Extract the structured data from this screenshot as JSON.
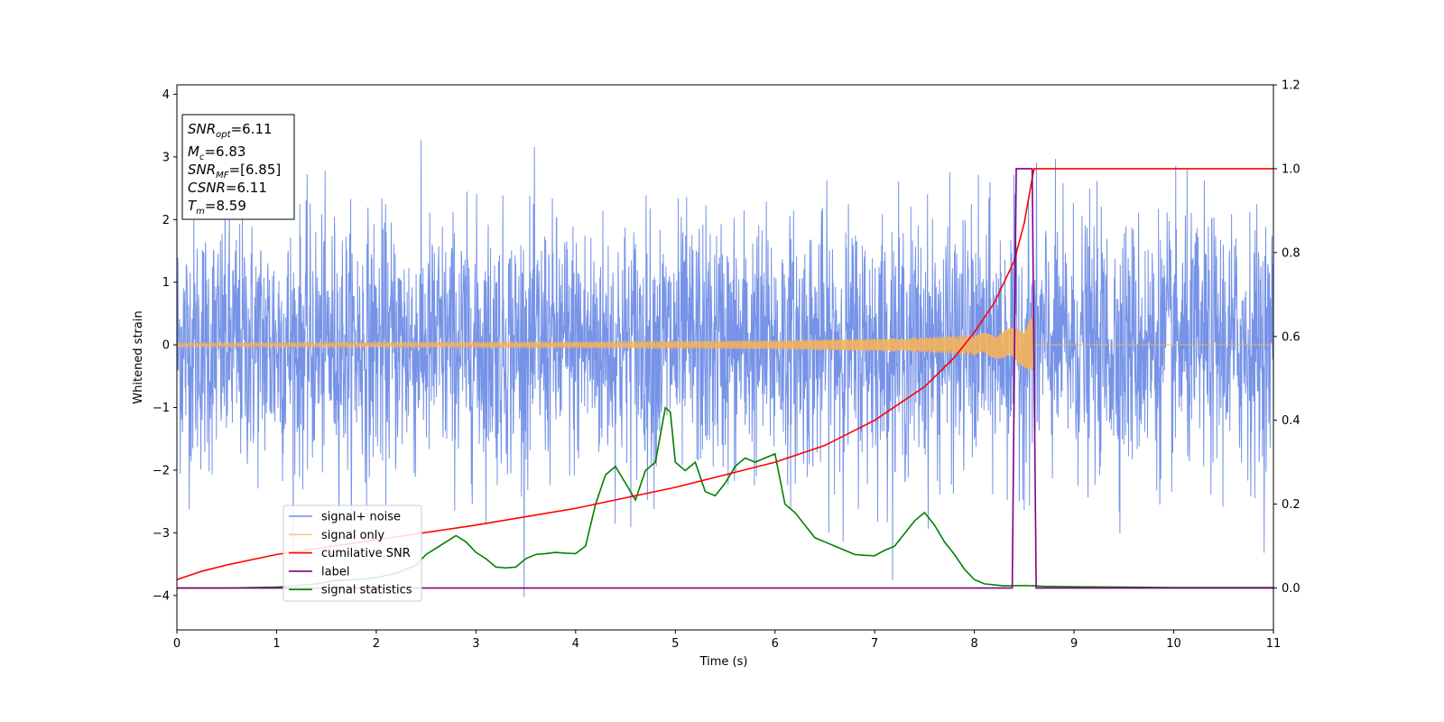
{
  "chart_data": {
    "type": "line",
    "xlabel": "Time (s)",
    "ylabel": "Whitened strain",
    "xlim": [
      0,
      11
    ],
    "ylim_left": [
      -4.55,
      4.15
    ],
    "ylim_right": [
      -0.1,
      1.2
    ],
    "x_ticks": [
      0,
      1,
      2,
      3,
      4,
      5,
      6,
      7,
      8,
      9,
      10,
      11
    ],
    "x_tick_labels": [
      "0",
      "1",
      "2",
      "3",
      "4",
      "5",
      "6",
      "7",
      "8",
      "9",
      "10",
      "11"
    ],
    "y_left_ticks": [
      4,
      3,
      2,
      1,
      0,
      -1,
      -2,
      -3,
      -4
    ],
    "y_left_tick_labels": [
      "4",
      "3",
      "2",
      "1",
      "0",
      "−1",
      "−2",
      "−3",
      "−4"
    ],
    "y_right_ticks": [
      1.2,
      1.0,
      0.8,
      0.6,
      0.4,
      0.2,
      0.0
    ],
    "y_right_tick_labels": [
      "1.2",
      "1.0",
      "0.8",
      "0.6",
      "0.4",
      "0.2",
      "0.0"
    ],
    "grid": false,
    "legend_position": "lower-left",
    "stats_box": [
      {
        "base": "SNR",
        "sub": "opt",
        "rest": "=6.11"
      },
      {
        "base": "M",
        "sub": "c",
        "rest": "=6.83"
      },
      {
        "base": "SNR",
        "sub": "MF",
        "rest": "=[6.85]"
      },
      {
        "base": "CSNR",
        "sub": "",
        "rest": "=6.11"
      },
      {
        "base": "T",
        "sub": "m",
        "rest": "=8.59"
      }
    ],
    "series": [
      {
        "name": "signal+ noise",
        "axis": "left",
        "color": "#6f8de6",
        "kind": "noise",
        "description_values": {
          "typical_amplitude": 1.0,
          "max": 3.72,
          "min": -4.15,
          "t_start": 0,
          "t_end": 11
        }
      },
      {
        "name": "signal only",
        "axis": "left",
        "color": "#f5b35c",
        "kind": "chirp",
        "envelope_x": [
          0,
          2,
          4,
          6,
          7,
          7.5,
          8,
          8.2,
          8.4,
          8.5,
          8.59,
          8.6,
          11
        ],
        "envelope_y": [
          0.03,
          0.04,
          0.05,
          0.07,
          0.1,
          0.12,
          0.17,
          0.21,
          0.28,
          0.35,
          0.5,
          0.0,
          0.0
        ]
      },
      {
        "name": "cumilative SNR",
        "axis": "right",
        "color": "#ff0000",
        "x": [
          0,
          0.25,
          0.5,
          1,
          2,
          3,
          4,
          5,
          5.5,
          6,
          6.5,
          7,
          7.5,
          7.8,
          8.0,
          8.2,
          8.4,
          8.5,
          8.59,
          8.6,
          11
        ],
        "y": [
          0.02,
          0.04,
          0.055,
          0.08,
          0.115,
          0.15,
          0.19,
          0.24,
          0.27,
          0.3,
          0.34,
          0.4,
          0.48,
          0.55,
          0.61,
          0.68,
          0.78,
          0.87,
          0.99,
          1.0,
          1.0
        ]
      },
      {
        "name": "label",
        "axis": "right",
        "color": "#800080",
        "x": [
          0,
          8.38,
          8.42,
          8.58,
          8.62,
          11
        ],
        "y": [
          0,
          0,
          1,
          1,
          0,
          0
        ]
      },
      {
        "name": "signal statistics",
        "axis": "right",
        "color": "#008000",
        "x": [
          0,
          0.5,
          1.0,
          1.2,
          1.4,
          1.6,
          1.8,
          2.0,
          2.2,
          2.4,
          2.5,
          2.6,
          2.7,
          2.8,
          2.9,
          3.0,
          3.1,
          3.2,
          3.3,
          3.4,
          3.5,
          3.6,
          3.7,
          3.8,
          3.9,
          4.0,
          4.1,
          4.2,
          4.3,
          4.4,
          4.5,
          4.6,
          4.7,
          4.8,
          4.9,
          4.95,
          5.0,
          5.1,
          5.2,
          5.3,
          5.4,
          5.5,
          5.6,
          5.7,
          5.8,
          5.9,
          6.0,
          6.1,
          6.2,
          6.3,
          6.4,
          6.5,
          6.6,
          6.7,
          6.8,
          6.9,
          7.0,
          7.1,
          7.2,
          7.3,
          7.4,
          7.5,
          7.6,
          7.7,
          7.8,
          7.9,
          8.0,
          8.1,
          8.3,
          8.5,
          8.7,
          9.0,
          9.5,
          10.0,
          10.5,
          11.0
        ],
        "y": [
          0.0,
          0.0,
          0.002,
          0.006,
          0.01,
          0.018,
          0.02,
          0.025,
          0.035,
          0.055,
          0.08,
          0.095,
          0.11,
          0.125,
          0.11,
          0.085,
          0.07,
          0.05,
          0.048,
          0.05,
          0.07,
          0.08,
          0.082,
          0.085,
          0.083,
          0.082,
          0.1,
          0.2,
          0.27,
          0.29,
          0.25,
          0.21,
          0.28,
          0.3,
          0.43,
          0.42,
          0.3,
          0.28,
          0.3,
          0.23,
          0.22,
          0.25,
          0.29,
          0.31,
          0.3,
          0.31,
          0.32,
          0.2,
          0.18,
          0.15,
          0.12,
          0.11,
          0.1,
          0.09,
          0.08,
          0.078,
          0.077,
          0.09,
          0.1,
          0.13,
          0.16,
          0.18,
          0.15,
          0.11,
          0.08,
          0.045,
          0.02,
          0.01,
          0.005,
          0.006,
          0.004,
          0.003,
          0.002,
          0.001,
          0.001,
          0.001
        ]
      }
    ]
  }
}
